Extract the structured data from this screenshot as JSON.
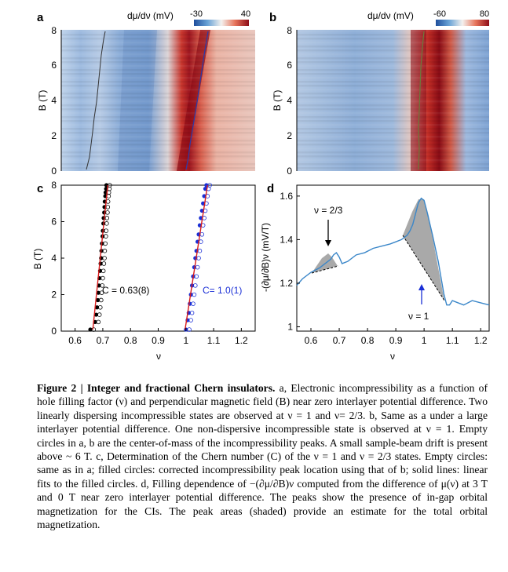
{
  "panels": {
    "a": {
      "letter": "a",
      "colorbar_label": "dμ/dν (mV)",
      "colorbar_min": "-30",
      "colorbar_max": "40",
      "ylabel": "B (T)",
      "yticks": [
        "0",
        "2",
        "4",
        "6",
        "8"
      ]
    },
    "b": {
      "letter": "b",
      "colorbar_label": "dμ/dν (mV)",
      "colorbar_min": "-60",
      "colorbar_max": "80",
      "ylabel": "B (T)",
      "yticks": [
        "0",
        "2",
        "4",
        "6",
        "8"
      ]
    },
    "c": {
      "letter": "c",
      "ylabel": "B (T)",
      "xlabel": "ν",
      "yticks": [
        "0",
        "2",
        "4",
        "6",
        "8"
      ],
      "xticks": [
        "0.6",
        "0.7",
        "0.8",
        "0.9",
        "1",
        "1.1",
        "1.2"
      ],
      "annotation_left": "C = 0.63(8)",
      "annotation_right": "C= 1.0(1)"
    },
    "d": {
      "letter": "d",
      "ylabel": "-(∂μ/∂B)ν (mV/T)",
      "xlabel": "ν",
      "yticks": [
        "1",
        "1.2",
        "1.4",
        "1.6"
      ],
      "xticks": [
        "0.6",
        "0.7",
        "0.8",
        "0.9",
        "1",
        "1.1",
        "1.2"
      ],
      "label_two_thirds": "ν = 2/3",
      "label_one": "ν = 1"
    }
  },
  "caption": {
    "title": "Figure 2 | Integer and fractional Chern insulators.",
    "body": " a, Electronic incompressibility as a function of hole filling factor (ν) and perpendicular magnetic field (B) near zero interlayer potential difference. Two linearly dispersing incompressible states are observed at ν = 1 and ν= 2/3. b, Same as a under a large interlayer potential difference. One non-dispersive incompressible state is observed at ν = 1. Empty circles in a, b are the center-of-mass of the incompressibility peaks. A small sample-beam drift is present above ~ 6 T. c, Determination of the Chern number (C) of the ν = 1 and ν = 2/3 states. Empty circles: same as in a; filled circles: corrected incompressibility peak location using that of b; solid lines: linear fits to the filled circles. d, Filling dependence of −(∂μ/∂B)ν computed from the difference of μ(ν) at 3 T and 0 T near zero interlayer potential difference. The peaks show the presence of in-gap orbital magnetization for the CIs. The peak areas (shaded) provide an estimate for the total orbital magnetization."
  },
  "chart_data": [
    {
      "panel": "c",
      "type": "scatter",
      "xlim": [
        0.55,
        1.25
      ],
      "ylim": [
        0,
        8
      ],
      "series": [
        {
          "name": "C = 0.63(8)",
          "color": "#000000",
          "x": [
            0.655,
            0.672,
            0.676,
            0.679,
            0.682,
            0.684,
            0.686,
            0.688,
            0.69,
            0.692,
            0.694,
            0.695,
            0.697,
            0.699,
            0.7,
            0.702,
            0.703,
            0.705,
            0.706,
            0.707,
            0.709,
            0.71,
            0.712,
            0.713
          ],
          "y": [
            0.0,
            0.5,
            0.9,
            1.3,
            1.7,
            2.1,
            2.5,
            2.9,
            3.3,
            3.7,
            4.0,
            4.4,
            4.8,
            5.2,
            5.5,
            5.9,
            6.2,
            6.5,
            6.8,
            7.1,
            7.4,
            7.6,
            7.8,
            8.0
          ],
          "fit": {
            "x": [
              0.664,
              0.718
            ],
            "y": [
              0,
              8
            ]
          }
        },
        {
          "name": "C= 1.0(1)",
          "color": "#1a2fd6",
          "x": [
            1.0,
            1.006,
            1.01,
            1.014,
            1.018,
            1.022,
            1.026,
            1.03,
            1.034,
            1.038,
            1.042,
            1.046,
            1.05,
            1.054,
            1.058,
            1.062,
            1.066,
            1.07,
            1.074
          ],
          "y": [
            0.0,
            0.6,
            1.0,
            1.5,
            2.0,
            2.5,
            3.0,
            3.5,
            4.0,
            4.4,
            4.9,
            5.3,
            5.8,
            6.2,
            6.6,
            7.0,
            7.4,
            7.8,
            8.0
          ],
          "fit": {
            "x": [
              0.997,
              1.078
            ],
            "y": [
              0,
              8
            ]
          }
        }
      ]
    },
    {
      "panel": "d",
      "type": "line",
      "xlim": [
        0.55,
        1.23
      ],
      "ylim": [
        0.98,
        1.65
      ],
      "series": [
        {
          "color": "#3b87c9",
          "x": [
            0.55,
            0.57,
            0.6,
            0.63,
            0.65,
            0.67,
            0.68,
            0.69,
            0.7,
            0.71,
            0.73,
            0.76,
            0.79,
            0.82,
            0.85,
            0.88,
            0.9,
            0.92,
            0.93,
            0.94,
            0.95,
            0.96,
            0.97,
            0.98,
            0.99,
            1.0,
            1.01,
            1.03,
            1.05,
            1.07,
            1.08,
            1.09,
            1.1,
            1.12,
            1.14,
            1.17,
            1.2,
            1.23
          ],
          "y": [
            1.19,
            1.22,
            1.25,
            1.27,
            1.29,
            1.31,
            1.33,
            1.34,
            1.32,
            1.29,
            1.3,
            1.33,
            1.34,
            1.36,
            1.37,
            1.38,
            1.39,
            1.4,
            1.41,
            1.42,
            1.44,
            1.47,
            1.52,
            1.57,
            1.59,
            1.58,
            1.53,
            1.42,
            1.3,
            1.15,
            1.1,
            1.1,
            1.12,
            1.11,
            1.1,
            1.12,
            1.11,
            1.1
          ]
        }
      ]
    }
  ]
}
